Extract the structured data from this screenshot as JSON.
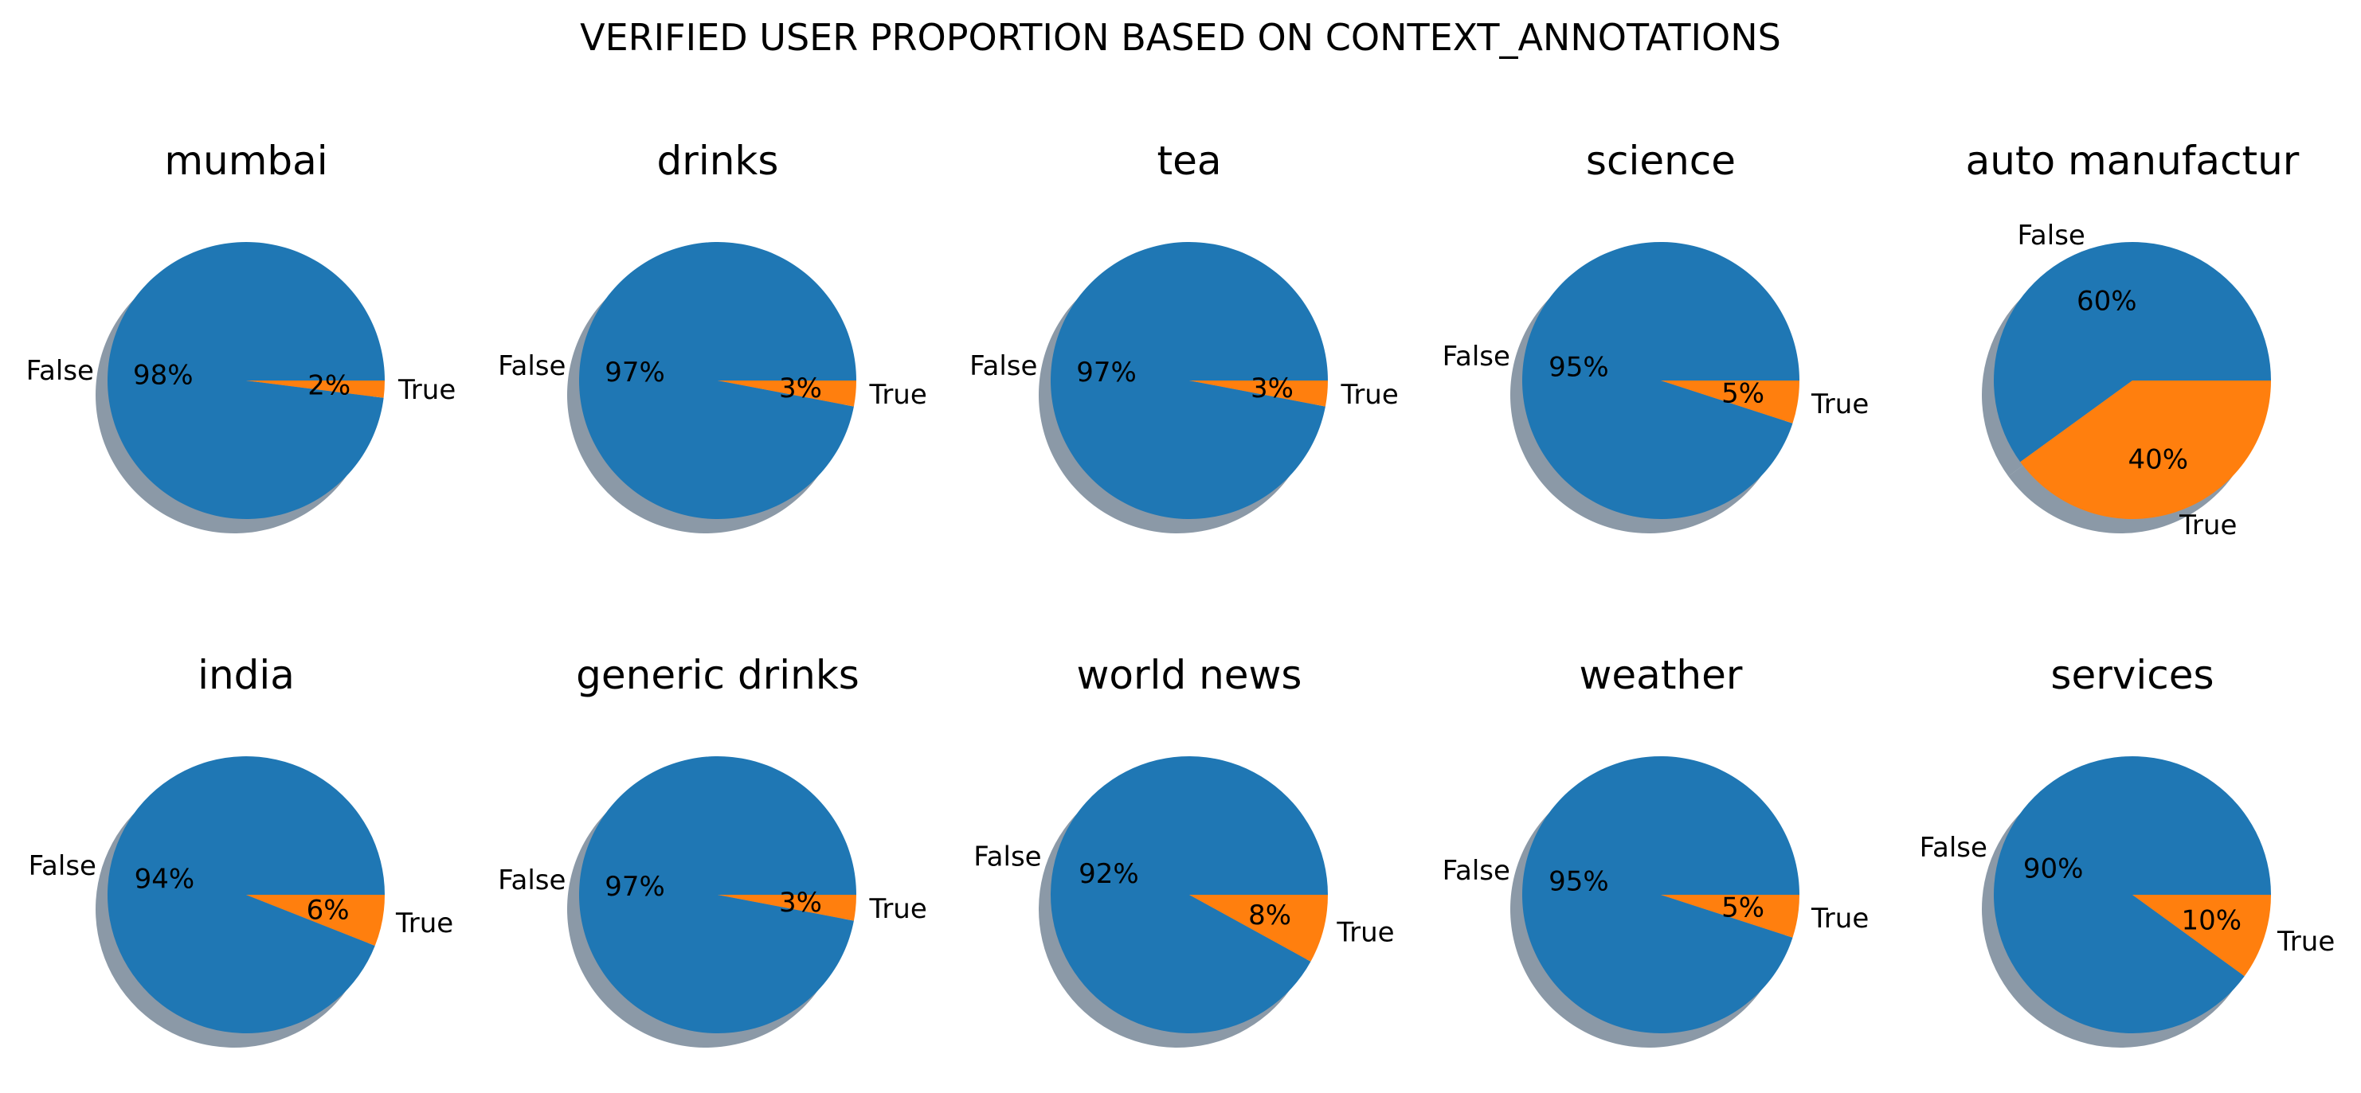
{
  "figure": {
    "title": "VERIFIED USER PROPORTION BASED ON CONTEXT_ANNOTATIONS"
  },
  "colors": {
    "False": "#1f77b4",
    "True": "#ff7f0e",
    "shadow": "#5a6e82"
  },
  "chart_data": [
    {
      "type": "pie",
      "title": "mumbai",
      "labels": [
        "False",
        "True"
      ],
      "values": [
        98,
        2
      ],
      "value_labels": [
        "98%",
        "2%"
      ]
    },
    {
      "type": "pie",
      "title": "drinks",
      "labels": [
        "False",
        "True"
      ],
      "values": [
        97,
        3
      ],
      "value_labels": [
        "97%",
        "3%"
      ]
    },
    {
      "type": "pie",
      "title": "tea",
      "labels": [
        "False",
        "True"
      ],
      "values": [
        97,
        3
      ],
      "value_labels": [
        "97%",
        "3%"
      ]
    },
    {
      "type": "pie",
      "title": "science",
      "labels": [
        "False",
        "True"
      ],
      "values": [
        95,
        5
      ],
      "value_labels": [
        "95%",
        "5%"
      ]
    },
    {
      "type": "pie",
      "title": "auto manufactur",
      "labels": [
        "False",
        "True"
      ],
      "values": [
        60,
        40
      ],
      "value_labels": [
        "60%",
        "40%"
      ]
    },
    {
      "type": "pie",
      "title": "india",
      "labels": [
        "False",
        "True"
      ],
      "values": [
        94,
        6
      ],
      "value_labels": [
        "94%",
        "6%"
      ]
    },
    {
      "type": "pie",
      "title": "generic drinks",
      "labels": [
        "False",
        "True"
      ],
      "values": [
        97,
        3
      ],
      "value_labels": [
        "97%",
        "3%"
      ]
    },
    {
      "type": "pie",
      "title": "world news",
      "labels": [
        "False",
        "True"
      ],
      "values": [
        92,
        8
      ],
      "value_labels": [
        "92%",
        "8%"
      ]
    },
    {
      "type": "pie",
      "title": "weather",
      "labels": [
        "False",
        "True"
      ],
      "values": [
        95,
        5
      ],
      "value_labels": [
        "95%",
        "5%"
      ]
    },
    {
      "type": "pie",
      "title": "services",
      "labels": [
        "False",
        "True"
      ],
      "values": [
        90,
        10
      ],
      "value_labels": [
        "90%",
        "10%"
      ]
    }
  ]
}
